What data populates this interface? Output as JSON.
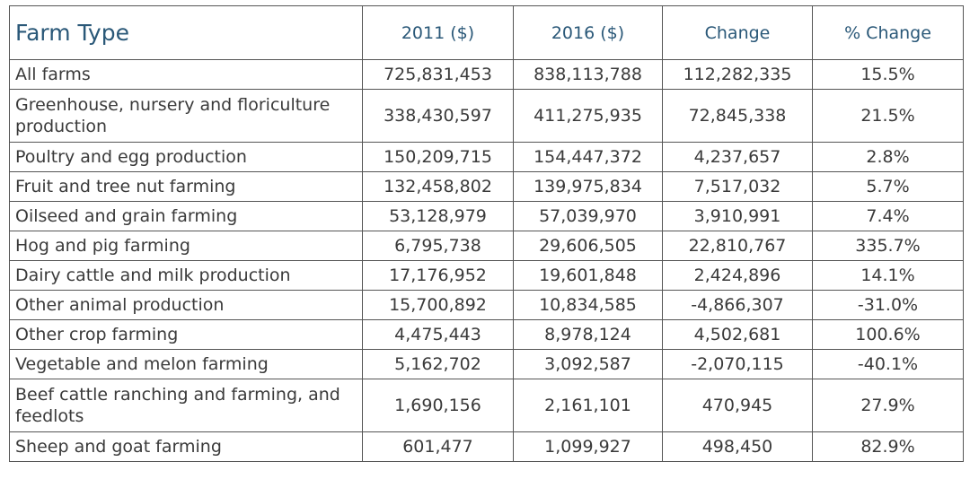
{
  "table": {
    "header": [
      "Farm Type",
      "2011 ($)",
      "2016 ($)",
      "Change",
      "% Change"
    ],
    "rows": [
      [
        "All farms",
        "725,831,453",
        "838,113,788",
        "112,282,335",
        "15.5%"
      ],
      [
        "Greenhouse, nursery and floriculture production",
        "338,430,597",
        "411,275,935",
        "72,845,338",
        "21.5%"
      ],
      [
        "Poultry and egg production",
        "150,209,715",
        "154,447,372",
        "4,237,657",
        "2.8%"
      ],
      [
        "Fruit and tree nut farming",
        "132,458,802",
        "139,975,834",
        "7,517,032",
        "5.7%"
      ],
      [
        "Oilseed and grain farming",
        "53,128,979",
        "57,039,970",
        "3,910,991",
        "7.4%"
      ],
      [
        "Hog and pig farming",
        "6,795,738",
        "29,606,505",
        "22,810,767",
        "335.7%"
      ],
      [
        "Dairy cattle and milk production",
        "17,176,952",
        "19,601,848",
        "2,424,896",
        "14.1%"
      ],
      [
        "Other animal production",
        "15,700,892",
        "10,834,585",
        "-4,866,307",
        "-31.0%"
      ],
      [
        "Other crop farming",
        "4,475,443",
        "8,978,124",
        "4,502,681",
        "100.6%"
      ],
      [
        "Vegetable and melon farming",
        "5,162,702",
        "3,092,587",
        "-2,070,115",
        "-40.1%"
      ],
      [
        "Beef cattle ranching and farming, and feedlots",
        "1,690,156",
        "2,161,101",
        "470,945",
        "27.9%"
      ],
      [
        "Sheep and goat farming",
        "601,477",
        "1,099,927",
        "498,450",
        "82.9%"
      ]
    ]
  }
}
